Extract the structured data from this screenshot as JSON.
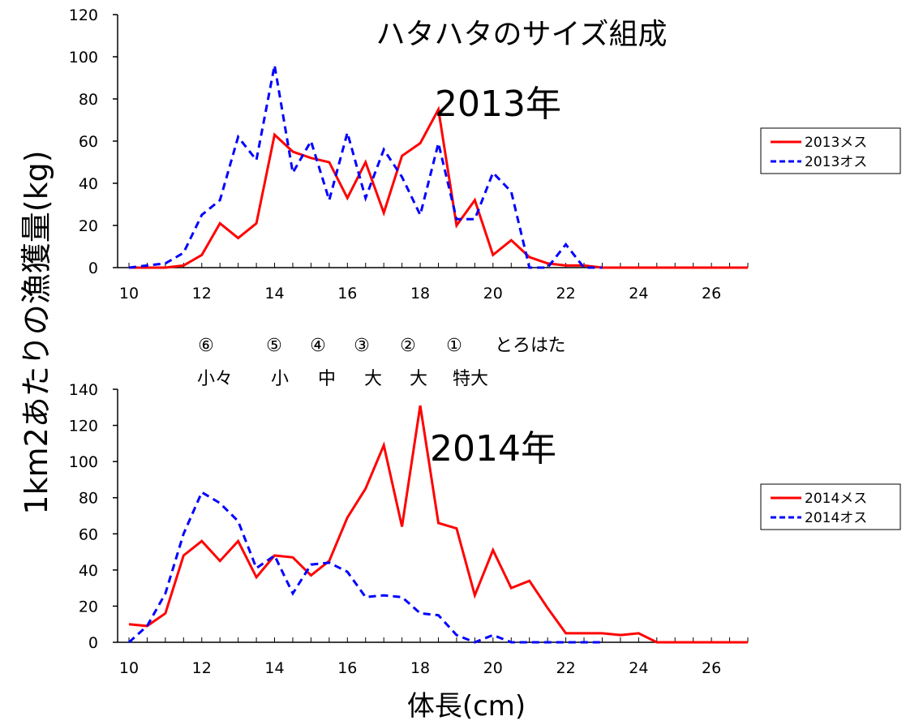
{
  "title": "ハタハタのサイズ組成",
  "ylabel": "1km2あたりの漁獲量(kg)",
  "xlabel": "体長(cm)",
  "size_labels": {
    "numbers": [
      "⑥",
      "⑤",
      "④",
      "③",
      "②",
      "①",
      "とろはた"
    ],
    "names": [
      "小々",
      "小",
      "中",
      "大",
      "大",
      "特大"
    ]
  },
  "colors": {
    "female": "#ff0000",
    "male": "#0000ff"
  },
  "chart_data": [
    {
      "type": "line",
      "annotation": "2013年",
      "x": [
        10,
        10.5,
        11,
        11.5,
        12,
        12.5,
        13,
        13.5,
        14,
        14.5,
        15,
        15.5,
        16,
        16.5,
        17,
        17.5,
        18,
        18.5,
        19,
        19.5,
        20,
        20.5,
        21,
        21.5,
        22,
        22.5,
        23,
        23.5,
        24,
        24.5,
        25,
        25.5,
        26,
        26.5,
        27
      ],
      "xlim": [
        10,
        27
      ],
      "xticks": [
        10,
        12,
        14,
        16,
        18,
        20,
        22,
        24,
        26
      ],
      "ylim": [
        0,
        120
      ],
      "yticks": [
        0,
        20,
        40,
        60,
        80,
        100,
        120
      ],
      "legend": "right",
      "series": [
        {
          "name": "2013メス",
          "style": "solid",
          "values": [
            0,
            0,
            0,
            1,
            6,
            21,
            14,
            21,
            63,
            55,
            52,
            50,
            33,
            50,
            26,
            53,
            59,
            75,
            20,
            32,
            6,
            13,
            5,
            2,
            1,
            1,
            0,
            0,
            0,
            0,
            0,
            0,
            0,
            0,
            0
          ]
        },
        {
          "name": "2013オス",
          "style": "dashed",
          "values": [
            0,
            1,
            2,
            7,
            25,
            32,
            62,
            51,
            96,
            45,
            60,
            32,
            64,
            33,
            56,
            43,
            25,
            59,
            23,
            23,
            45,
            36,
            0,
            0,
            11,
            0,
            0,
            null,
            null,
            null,
            null,
            null,
            null,
            null,
            null
          ]
        }
      ]
    },
    {
      "type": "line",
      "annotation": "2014年",
      "x": [
        10,
        10.5,
        11,
        11.5,
        12,
        12.5,
        13,
        13.5,
        14,
        14.5,
        15,
        15.5,
        16,
        16.5,
        17,
        17.5,
        18,
        18.5,
        19,
        19.5,
        20,
        20.5,
        21,
        21.5,
        22,
        22.5,
        23,
        23.5,
        24,
        24.5,
        25,
        25.5,
        26,
        26.5,
        27
      ],
      "xlim": [
        10,
        27
      ],
      "xticks": [
        10,
        12,
        14,
        16,
        18,
        20,
        22,
        24,
        26
      ],
      "ylim": [
        0,
        140
      ],
      "yticks": [
        0,
        20,
        40,
        60,
        80,
        100,
        120,
        140
      ],
      "legend": "right",
      "series": [
        {
          "name": "2014メス",
          "style": "solid",
          "values": [
            10,
            9,
            16,
            48,
            56,
            45,
            56,
            36,
            48,
            47,
            37,
            45,
            69,
            85,
            109,
            64,
            131,
            66,
            63,
            26,
            51,
            30,
            34,
            19,
            5,
            5,
            5,
            4,
            5,
            0,
            0,
            0,
            0,
            0,
            0
          ]
        },
        {
          "name": "2014オス",
          "style": "dashed",
          "values": [
            0,
            9,
            27,
            60,
            83,
            77,
            67,
            41,
            48,
            27,
            43,
            44,
            39,
            25,
            26,
            25,
            16,
            15,
            4,
            0,
            4,
            0,
            0,
            0,
            0,
            0,
            0,
            null,
            null,
            null,
            null,
            null,
            null,
            null,
            null
          ]
        }
      ]
    }
  ]
}
